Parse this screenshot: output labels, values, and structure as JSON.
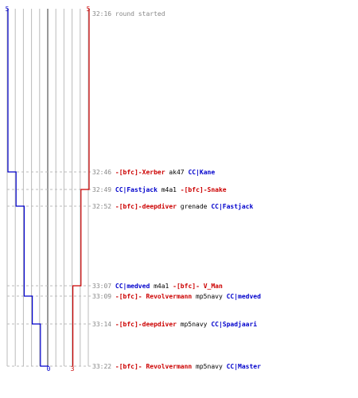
{
  "chart_data": {
    "type": "line",
    "score_blue_top": "5",
    "score_red_top": "5",
    "score_blue_bottom": "0",
    "score_red_bottom": "3",
    "colors": {
      "blue_team": "#0000cc",
      "red_team": "#cc0000",
      "time": "#888888",
      "grid": "#bbbbbb",
      "center": "#555555",
      "text": "#000000",
      "dash": "#bbbbbb"
    },
    "events": [
      {
        "time": "32:16",
        "parts": [
          {
            "text": "round started",
            "color": "#888888"
          }
        ]
      },
      {
        "time": "32:46",
        "parts": [
          {
            "text": "-[bfc]-Xerber",
            "color": "#cc0000"
          },
          {
            "text": " ak47 ",
            "color": "#000000"
          },
          {
            "text": "CC|Kane",
            "color": "#0000cc"
          }
        ]
      },
      {
        "time": "32:49",
        "parts": [
          {
            "text": "CC|Fastjack",
            "color": "#0000cc"
          },
          {
            "text": " m4a1 ",
            "color": "#000000"
          },
          {
            "text": "-[bfc]-Snake",
            "color": "#cc0000"
          }
        ]
      },
      {
        "time": "32:52",
        "parts": [
          {
            "text": "-[bfc]-deepdiver",
            "color": "#cc0000"
          },
          {
            "text": " grenade ",
            "color": "#000000"
          },
          {
            "text": "CC|Fastjack",
            "color": "#0000cc"
          }
        ]
      },
      {
        "time": "33:07",
        "parts": [
          {
            "text": "CC|medved",
            "color": "#0000cc"
          },
          {
            "text": " m4a1 ",
            "color": "#000000"
          },
          {
            "text": "-[bfc]- V_Man",
            "color": "#cc0000"
          }
        ]
      },
      {
        "time": "33:09",
        "parts": [
          {
            "text": "-[bfc]- Revolvermann",
            "color": "#cc0000"
          },
          {
            "text": " mp5navy ",
            "color": "#000000"
          },
          {
            "text": "CC|medved",
            "color": "#0000cc"
          }
        ]
      },
      {
        "time": "33:14",
        "parts": [
          {
            "text": "-[bfc]-deepdiver",
            "color": "#cc0000"
          },
          {
            "text": " mp5navy ",
            "color": "#000000"
          },
          {
            "text": "CC|Spadjaari",
            "color": "#0000cc"
          }
        ]
      },
      {
        "time": "33:22",
        "parts": [
          {
            "text": "-[bfc]- Revolvermann",
            "color": "#cc0000"
          },
          {
            "text": " mp5navy ",
            "color": "#000000"
          },
          {
            "text": "CC|Master",
            "color": "#0000cc"
          }
        ]
      }
    ],
    "blue_alive": [
      5,
      4,
      4,
      3,
      3,
      2,
      1,
      0
    ],
    "red_alive": [
      5,
      5,
      4,
      4,
      3,
      3,
      3,
      3
    ]
  }
}
